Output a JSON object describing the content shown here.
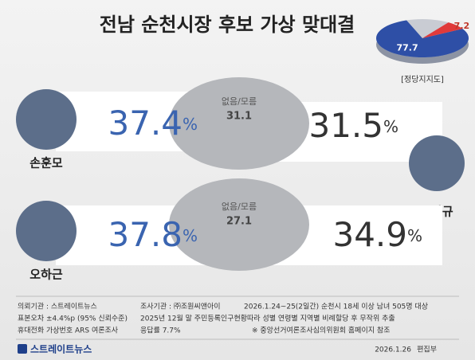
{
  "title": "전남 순천시장 후보 가상 맞대결",
  "pie": {
    "type": "pie",
    "values": [
      77.7,
      7.2
    ],
    "colors": [
      "#2e4fa6",
      "#e03a3a"
    ],
    "rest_color": "#c9ccd3",
    "caption": "[정당지지도]"
  },
  "unit": "%",
  "matchups": [
    {
      "left": {
        "name": "손훈모",
        "value": "37.4"
      },
      "right": {
        "name": "노관규",
        "value": "31.5"
      },
      "middle": {
        "label": "없음/모름",
        "value": "31.1"
      }
    },
    {
      "left": {
        "name": "오하근",
        "value": "37.8"
      },
      "right": {
        "name": "",
        "value": "34.9"
      },
      "middle": {
        "label": "없음/모름",
        "value": "27.1"
      }
    }
  ],
  "notes": [
    "의뢰기관 : 스트레이트뉴스",
    "조사기관 : ㈜조원씨앤아이",
    "2026.1.24~25(2일간) 순천시 18세 이상 남녀 505명 대상",
    "표본오차 ±4.4%p (95% 신뢰수준)",
    "2025년 12월 말 주민등록인구현황따라 성별 연령별 지역별 비례할당 후 무작위 추출",
    "휴대전화 가상번호 ARS 여론조사",
    "응답률 7.7%",
    "※ 중앙선거여론조사심의위원회 홈페이지 참조"
  ],
  "footer": {
    "brand": "스트레이트뉴스",
    "date": "2026.1.26",
    "dept": "편집부"
  }
}
